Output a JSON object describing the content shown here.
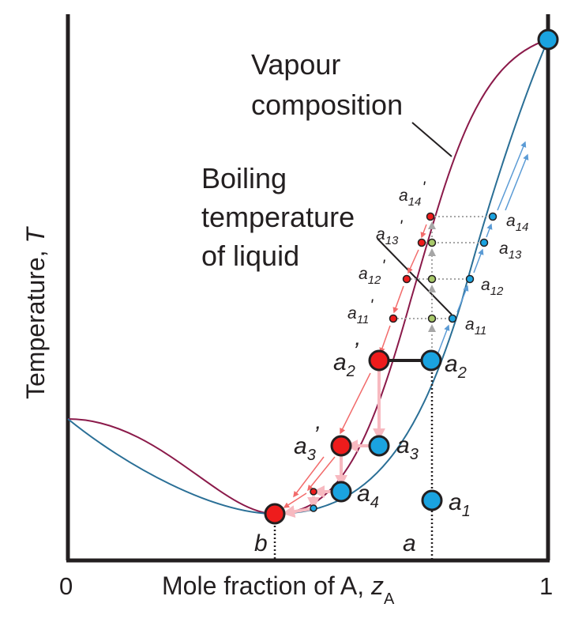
{
  "figure": {
    "y_axis_label": "Temperature, ",
    "y_axis_symbol": "T",
    "x_axis_label": "Mole fraction of A, ",
    "x_axis_symbol": "z",
    "x_axis_symbol_sub": "A",
    "x_tick_min": "0",
    "x_tick_max": "1",
    "annotation_vapour": [
      "Vapour",
      "composition"
    ],
    "annotation_liquid": [
      "Boiling",
      "temperature",
      "of liquid"
    ]
  },
  "points": {
    "b": "b",
    "a": "a",
    "a1": {
      "base": "a",
      "sub": "1"
    },
    "a2": {
      "base": "a",
      "sub": "2"
    },
    "a2p": {
      "base": "a",
      "sub": "2",
      "prime": "’"
    },
    "a3": {
      "base": "a",
      "sub": "3"
    },
    "a3p": {
      "base": "a",
      "sub": "3",
      "prime": "’"
    },
    "a4": {
      "base": "a",
      "sub": "4"
    },
    "a11": {
      "base": "a",
      "sub": "11"
    },
    "a12": {
      "base": "a",
      "sub": "12"
    },
    "a13": {
      "base": "a",
      "sub": "13"
    },
    "a14": {
      "base": "a",
      "sub": "14"
    },
    "a11p": {
      "base": "a",
      "sub": "11",
      "prime": "'"
    },
    "a12p": {
      "base": "a",
      "sub": "12",
      "prime": "'"
    },
    "a13p": {
      "base": "a",
      "sub": "13",
      "prime": "'"
    },
    "a14p": {
      "base": "a",
      "sub": "14",
      "prime": "'"
    }
  },
  "colors": {
    "vapour_curve": "#8b1a4a",
    "liquid_curve": "#2a6f96",
    "blue_dot": "#1aa3e0",
    "red_dot": "#ee1c1c",
    "green_dot": "#a8c96a",
    "red_arrow": "#f26b6b",
    "blue_arrow": "#5b9bd5",
    "pink_arrow": "#f7b9c0",
    "axis": "#231f20"
  }
}
